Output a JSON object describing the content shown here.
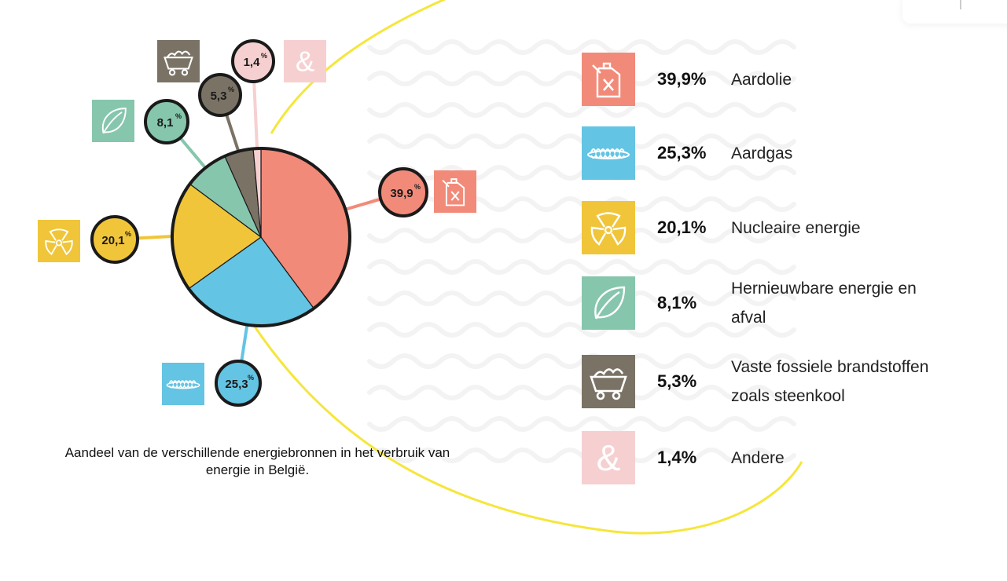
{
  "caption": "Aandeel van de verschillende energiebronnen in het verbruik van energie in België.",
  "colors": {
    "aardolie": "#f28a79",
    "aardgas": "#64c4e3",
    "nucleair": "#f0c53a",
    "hernieuwbaar": "#86c6ad",
    "vast": "#7a7365",
    "andere": "#f6d0d1",
    "yellow_curve": "#f5e63c"
  },
  "chart_data": {
    "type": "pie",
    "title": "",
    "categories": [
      "Aardolie",
      "Aardgas",
      "Nucleaire energie",
      "Hernieuwbare energie en afval",
      "Vaste fossiele brandstoffen zoals steenkool",
      "Andere"
    ],
    "values": [
      39.9,
      25.3,
      20.1,
      8.1,
      5.3,
      1.4
    ],
    "data_labels": [
      "39,9",
      "25,3",
      "20,1",
      "8,1",
      "5,3",
      "1,4"
    ],
    "data_label_unit": "%",
    "icons": [
      "jerrycan-icon",
      "gas-flame-icon",
      "radiation-icon",
      "leaf-icon",
      "coal-cart-icon",
      "ampersand-icon"
    ]
  },
  "legend": [
    {
      "pct": "39,9%",
      "label": "Aardolie",
      "icon": "jerrycan-icon"
    },
    {
      "pct": "25,3%",
      "label": "Aardgas",
      "icon": "gas-flame-icon"
    },
    {
      "pct": "20,1%",
      "label": "Nucleaire energie",
      "icon": "radiation-icon"
    },
    {
      "pct": "8,1%",
      "label": "Hernieuwbare energie en afval",
      "icon": "leaf-icon"
    },
    {
      "pct": "5,3%",
      "label": "Vaste fossiele brandstoffen zoals steenkool",
      "icon": "coal-cart-icon"
    },
    {
      "pct": "1,4%",
      "label": "Andere",
      "icon": "ampersand-icon"
    }
  ],
  "ampersand_glyph": "&"
}
